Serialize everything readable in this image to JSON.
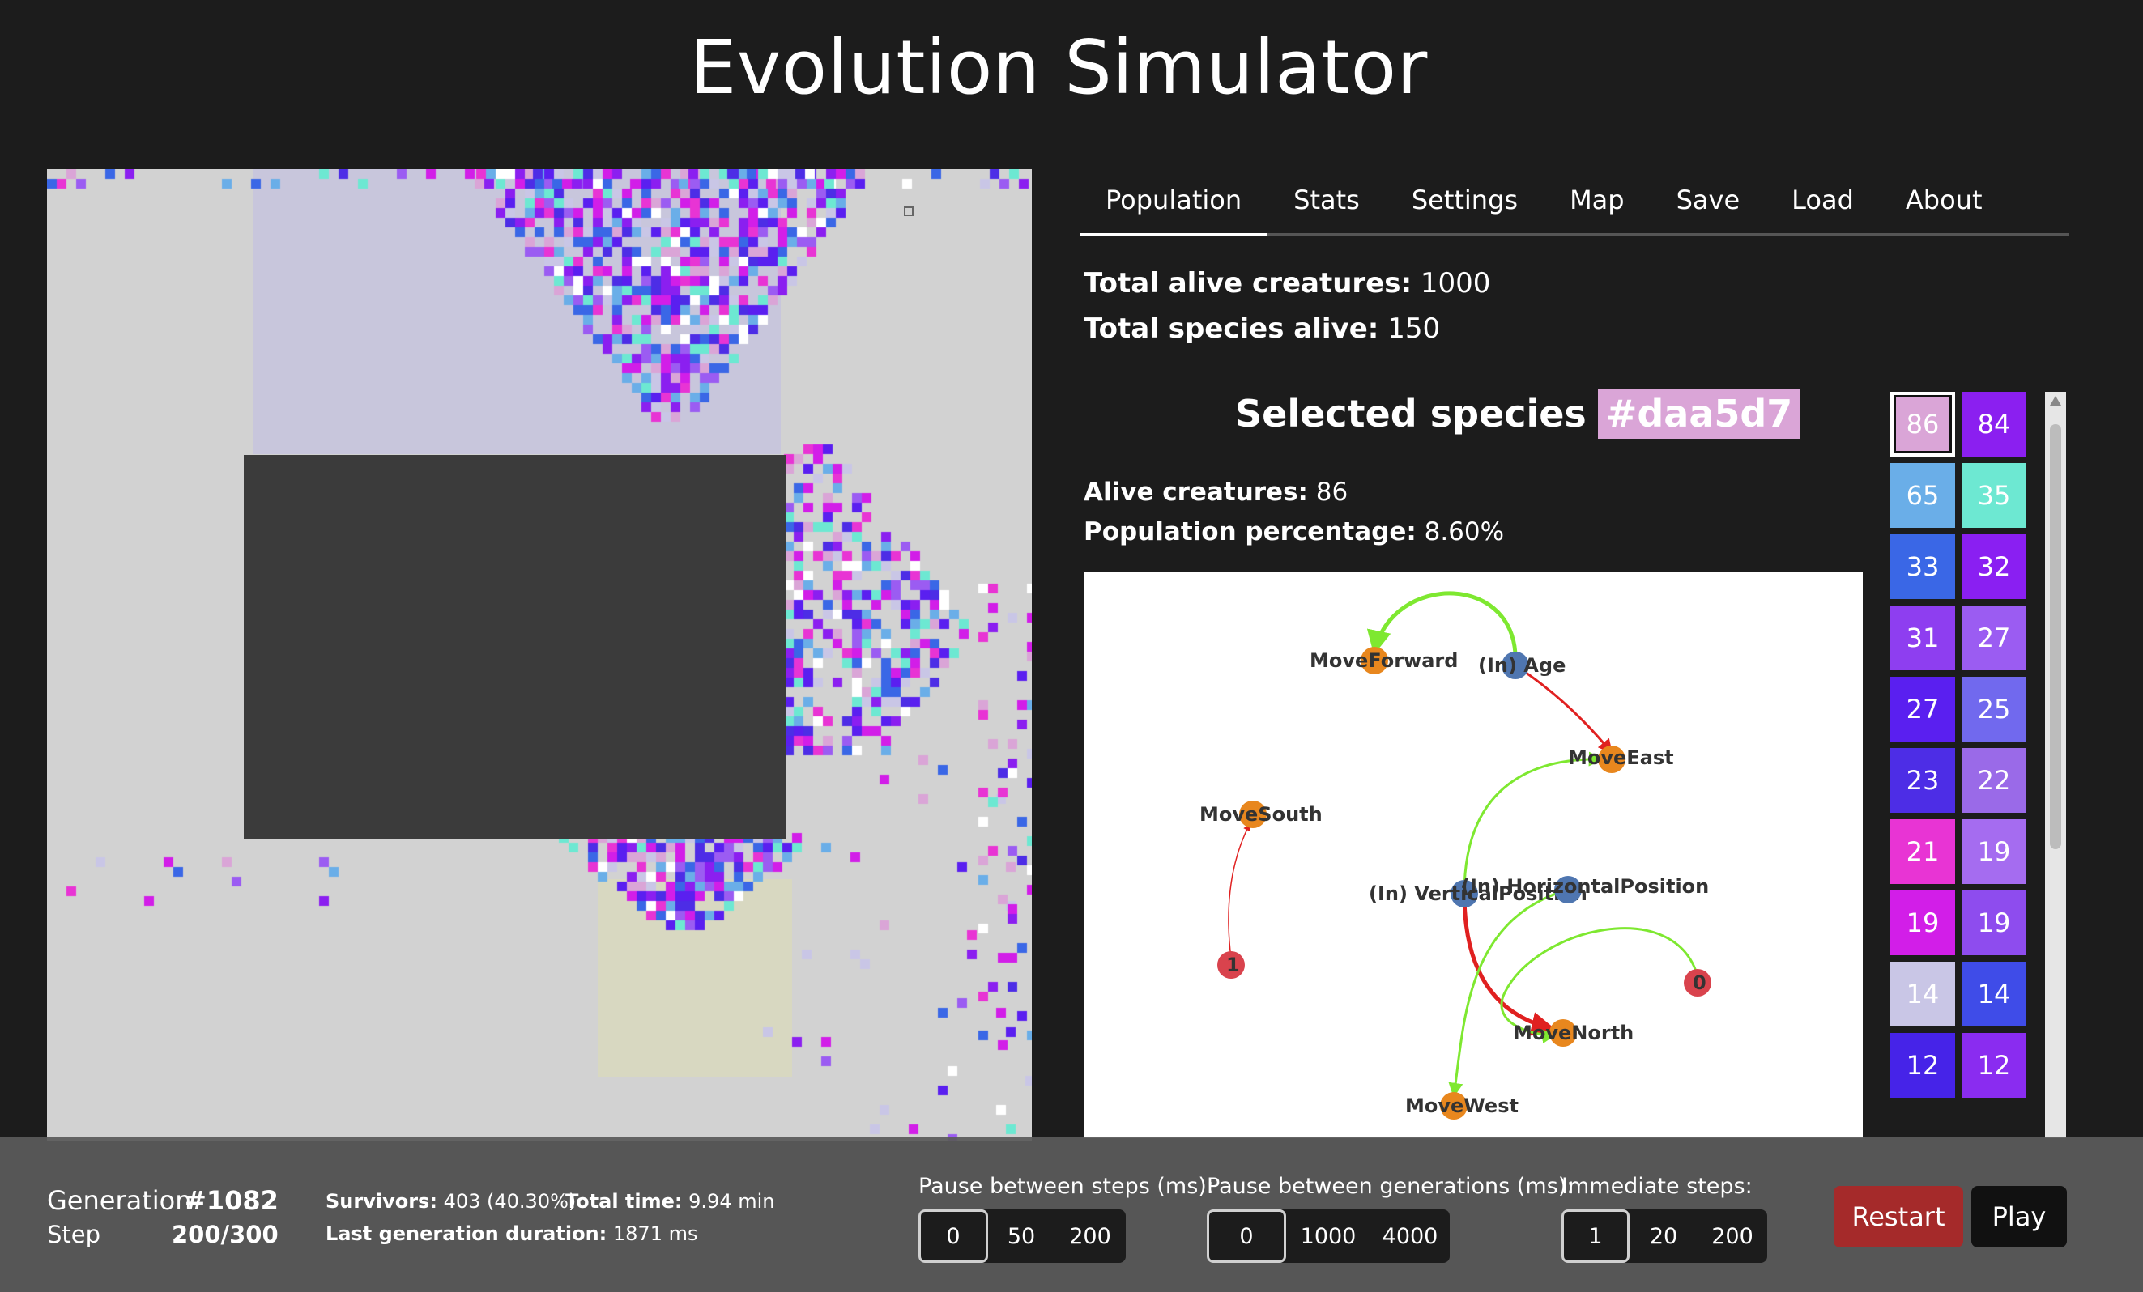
{
  "app": {
    "title": "Evolution Simulator"
  },
  "colors": {
    "background": "#1c1c1c",
    "world": "#d2d2d2",
    "obstacle": "#3b3b3b",
    "restart": "#a52a2a",
    "selected_species": "#daa5d7"
  },
  "tabs": [
    {
      "label": "Population",
      "active": true
    },
    {
      "label": "Stats"
    },
    {
      "label": "Settings"
    },
    {
      "label": "Map"
    },
    {
      "label": "Save"
    },
    {
      "label": "Load"
    },
    {
      "label": "About"
    }
  ],
  "population": {
    "total_alive_label": "Total alive creatures:",
    "total_alive": "1000",
    "species_alive_label": "Total species alive:",
    "species_alive": "150",
    "selected_title": "Selected species",
    "selected_hex": "#daa5d7",
    "alive_label": "Alive creatures:",
    "alive": "86",
    "percentage_label": "Population percentage:",
    "percentage": "8.60%"
  },
  "graph": {
    "nodes": [
      {
        "id": "MoveForward",
        "label": "MoveForward",
        "kind": "output"
      },
      {
        "id": "Age",
        "label": "(In) Age",
        "kind": "input"
      },
      {
        "id": "MoveEast",
        "label": "MoveEast",
        "kind": "output"
      },
      {
        "id": "MoveSouth",
        "label": "MoveSouth",
        "kind": "output"
      },
      {
        "id": "VerticalPosition",
        "label": "(In) VerticalPosition",
        "kind": "input"
      },
      {
        "id": "HorizontalPosition",
        "label": "(In) HorizontalPosition",
        "kind": "input"
      },
      {
        "id": "n1",
        "label": "1",
        "kind": "hidden"
      },
      {
        "id": "n0",
        "label": "0",
        "kind": "hidden"
      },
      {
        "id": "MoveNorth",
        "label": "MoveNorth",
        "kind": "output"
      },
      {
        "id": "MoveWest",
        "label": "MoveWest",
        "kind": "output"
      }
    ],
    "edges": [
      {
        "from": "Age",
        "to": "MoveForward",
        "sign": "positive"
      },
      {
        "from": "Age",
        "to": "MoveEast",
        "sign": "negative"
      },
      {
        "from": "n1",
        "to": "MoveSouth",
        "sign": "negative"
      },
      {
        "from": "VerticalPosition",
        "to": "MoveEast",
        "sign": "positive"
      },
      {
        "from": "VerticalPosition",
        "to": "MoveNorth",
        "sign": "negative"
      },
      {
        "from": "HorizontalPosition",
        "to": "MoveWest",
        "sign": "positive"
      },
      {
        "from": "n0",
        "to": "MoveNorth",
        "sign": "positive"
      }
    ]
  },
  "species": [
    {
      "count": "86",
      "color": "#daa5d7",
      "selected": true
    },
    {
      "count": "84",
      "color": "#8b1ff0"
    },
    {
      "count": "65",
      "color": "#6aaee8"
    },
    {
      "count": "35",
      "color": "#6de8d2"
    },
    {
      "count": "33",
      "color": "#3a67e6"
    },
    {
      "count": "32",
      "color": "#8a1ff2"
    },
    {
      "count": "31",
      "color": "#8e3ef0"
    },
    {
      "count": "27",
      "color": "#9b5cf2"
    },
    {
      "count": "27",
      "color": "#5a1ff0"
    },
    {
      "count": "25",
      "color": "#7169ee"
    },
    {
      "count": "23",
      "color": "#4d2de6"
    },
    {
      "count": "22",
      "color": "#9a6ae8"
    },
    {
      "count": "21",
      "color": "#e834d4"
    },
    {
      "count": "19",
      "color": "#a56cf0"
    },
    {
      "count": "19",
      "color": "#d21ee8"
    },
    {
      "count": "19",
      "color": "#8e4cee"
    },
    {
      "count": "14",
      "color": "#c9c6e6"
    },
    {
      "count": "14",
      "color": "#3f4ce8"
    },
    {
      "count": "12",
      "color": "#4623e8"
    },
    {
      "count": "12",
      "color": "#8a2cf0"
    }
  ],
  "footer": {
    "generation_label": "Generation",
    "generation": "#1082",
    "step_label": "Step",
    "step": "200/300",
    "survivors_label": "Survivors:",
    "survivors": "403 (40.30%)",
    "total_time_label": "Total time:",
    "total_time": "9.94 min",
    "last_gen_label": "Last generation duration:",
    "last_gen": "1871 ms",
    "pause_steps_label": "Pause between steps (ms):",
    "pause_steps": [
      "0",
      "50",
      "200"
    ],
    "pause_gen_label": "Pause between generations (ms):",
    "pause_gen": [
      "0",
      "1000",
      "4000"
    ],
    "immediate_label": "Immediate steps:",
    "immediate": [
      "1",
      "20",
      "200"
    ],
    "restart": "Restart",
    "play": "Play"
  }
}
